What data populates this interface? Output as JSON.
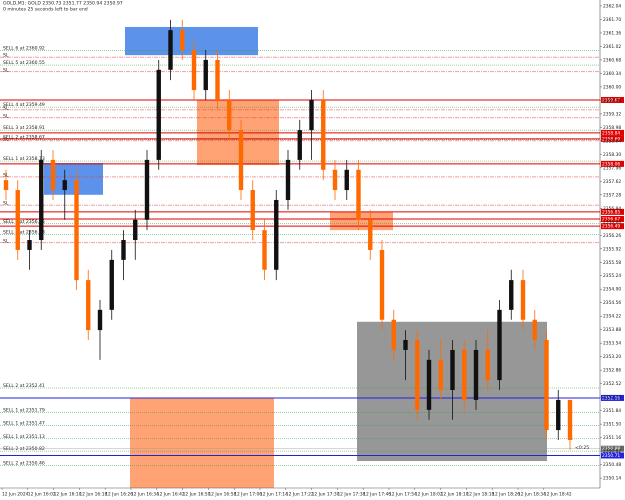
{
  "chart_data": {
    "type": "candlestick",
    "title": "GOLD,M1: GOLD 2350.73 2351.77 2350.94 2350.97",
    "subtitle": "0 minutes 25 seconds left to bar end",
    "ylim": [
      2349.89,
      2362.19
    ],
    "yticks": [
      2362.04,
      {
        "value": 2361.7,
        "label": "2361.70"
      },
      2361.36,
      2361.02,
      2360.68,
      2360.34,
      {
        "value": 2360,
        "label": "2360.00"
      },
      2359.66,
      2359.32,
      2358.98,
      2358.64,
      {
        "value": 2358.3,
        "label": "2358.30"
      },
      2357.96,
      2357.62,
      2357.28,
      2356.94,
      {
        "value": 2356.6,
        "label": "2356.60"
      },
      2356.26,
      2355.92,
      2355.58,
      2355.24,
      {
        "value": 2354.9,
        "label": "2354.90"
      },
      2354.56,
      2354.22,
      2353.88,
      2353.54,
      {
        "value": 2353.2,
        "label": "2353.20"
      },
      2352.86,
      2352.52,
      2352.18,
      2351.84,
      {
        "value": 2351.5,
        "label": "2351.50"
      },
      2351.16,
      2350.82,
      2350.48,
      2350.14
    ],
    "time_labels": [
      "12 Jun 2024",
      "12 Jun 16:02",
      "12 Jun 16:10",
      "12 Jun 16:18",
      "12 Jun 16:26",
      "12 Jun 16:34",
      "12 Jun 16:42",
      "12 Jun 16:50",
      "12 Jun 16:58",
      "12 Jun 17:06",
      "12 Jun 17:14",
      "12 Jun 17:22",
      "12 Jun 17:30",
      "12 Jun 17:38",
      "12 Jun 17:46",
      "12 Jun 17:54",
      "12 Jun 18:02",
      "12 Jun 18:10",
      "12 Jun 18:18",
      "12 Jun 18:26",
      "12 Jun 18:34",
      "12 Jun 18:42"
    ],
    "up_color": "#111111",
    "down_color": "#ff6a00",
    "open": [
      2357.65,
      2357.4,
      2355.89,
      2356.14,
      2358.16,
      2357.4,
      2357.65,
      2355.13,
      2353.87,
      2354.38,
      2355.64,
      2356.14,
      2356.65,
      2358.16,
      2360.43,
      2361.43,
      2360.93,
      2359.92,
      2360.68,
      2359.67,
      2358.91,
      2357.4,
      2356.39,
      2355.39,
      2357.15,
      2358.16,
      2358.91,
      2359.67,
      2357.91,
      2357.4,
      2357.91,
      2356.65,
      2355.89,
      2354.13,
      2353.37,
      2353.62,
      2351.86,
      2353.12,
      2352.36,
      2353.37,
      2352.11,
      2353.37,
      2352.61,
      2354.38,
      2355.13,
      2354.13,
      2353.62,
      2351.35,
      2352.11
    ],
    "high": [
      2357.91,
      2357.65,
      2356.39,
      2358.41,
      2358.41,
      2357.91,
      2357.91,
      2355.39,
      2354.63,
      2355.89,
      2356.39,
      2356.9,
      2358.41,
      2360.68,
      2361.69,
      2361.69,
      2361.18,
      2360.93,
      2360.93,
      2359.92,
      2359.17,
      2357.65,
      2356.65,
      2357.4,
      2358.41,
      2359.17,
      2359.92,
      2359.92,
      2358.16,
      2358.16,
      2358.16,
      2356.9,
      2356.14,
      2354.38,
      2353.87,
      2353.87,
      2353.37,
      2353.62,
      2353.62,
      2353.62,
      2353.62,
      2353.87,
      2354.63,
      2355.39,
      2355.39,
      2354.38,
      2353.87,
      2352.36,
      2352.11
    ],
    "low": [
      2357.15,
      2355.64,
      2355.39,
      2355.89,
      2357.15,
      2356.65,
      2354.88,
      2353.62,
      2353.12,
      2354.13,
      2355.13,
      2355.64,
      2356.39,
      2357.91,
      2360.17,
      2360.68,
      2359.67,
      2359.67,
      2359.42,
      2358.66,
      2357.15,
      2356.14,
      2355.13,
      2355.13,
      2356.9,
      2357.91,
      2358.16,
      2357.65,
      2357.15,
      2357.15,
      2356.39,
      2355.64,
      2353.87,
      2353.12,
      2352.61,
      2351.61,
      2351.61,
      2352.11,
      2351.61,
      2351.86,
      2351.86,
      2352.36,
      2352.36,
      2354.13,
      2353.87,
      2353.37,
      2351.1,
      2351.1,
      2350.85
    ],
    "close": [
      2357.4,
      2355.89,
      2356.14,
      2358.16,
      2357.4,
      2357.65,
      2355.13,
      2353.87,
      2354.38,
      2355.64,
      2356.14,
      2356.65,
      2358.16,
      2360.43,
      2361.43,
      2360.93,
      2359.92,
      2360.68,
      2359.67,
      2358.91,
      2357.4,
      2356.39,
      2355.39,
      2357.15,
      2358.16,
      2358.91,
      2359.67,
      2357.91,
      2357.4,
      2357.91,
      2356.65,
      2355.89,
      2354.13,
      2353.37,
      2353.62,
      2351.86,
      2353.12,
      2352.36,
      2353.37,
      2352.11,
      2353.37,
      2352.61,
      2354.38,
      2355.13,
      2354.13,
      2353.62,
      2351.35,
      2352.11,
      2351.1
    ],
    "zones": [
      {
        "color": "#4a86e8",
        "top": 2361.51,
        "bottom": 2360.8
      },
      {
        "color": "#4a86e8",
        "top": 2358.08,
        "bottom": 2357.28
      },
      {
        "color": "#ff9966",
        "top": 2359.67,
        "bottom": 2358.03
      },
      {
        "color": "#ff9966",
        "top": 2356.85,
        "bottom": 2356.39
      },
      {
        "color": "#ff9966",
        "top": 2352.16,
        "bottom": 2349.89
      },
      {
        "color": "#8c8c8c",
        "top": 2354.08,
        "bottom": 2350.57
      }
    ],
    "orders": [
      {
        "label": "SELL 6 at 2360.92",
        "price": 2360.92
      },
      {
        "label": "SELL 5 at 2360.55",
        "price": 2360.55
      },
      {
        "label": "SELL 4 at 2359.49",
        "price": 2359.49
      },
      {
        "label": "SELL 3 at 2358.91",
        "price": 2358.91
      },
      {
        "label": "SELL 2 at 2358.67",
        "price": 2358.67
      },
      {
        "label": "SELL 1 at 2358.13",
        "price": 2358.13
      },
      {
        "label": "SELL 1 at 2356.55",
        "price": 2356.55
      },
      {
        "label": "SELL 1 at 2356.28",
        "price": 2356.28
      },
      {
        "label": "SELL 2 at 2352.41",
        "price": 2352.41
      },
      {
        "label": "SELL 1 at 2351.79",
        "price": 2351.79
      },
      {
        "label": "SELL 1 at 2351.47",
        "price": 2351.47
      },
      {
        "label": "SELL 1 at 2351.13",
        "price": 2351.13
      },
      {
        "label": "SELL 2 at 2350.82",
        "price": 2350.82
      },
      {
        "label": "SELL 2 at 2350.46",
        "price": 2350.46
      }
    ],
    "sl_label": "SL",
    "sl_levels": [
      2360.75,
      2360.38,
      2359.42,
      2359.22,
      2358.64,
      2357.73,
      2357.02,
      2356.07
    ],
    "levels": [
      {
        "price": 2359.67,
        "color": "#e00000"
      },
      {
        "price": 2358.84,
        "color": "#e00000"
      },
      {
        "price": 2358.69,
        "color": "#e00000"
      },
      {
        "price": 2358.06,
        "color": "#e00000"
      },
      {
        "price": 2356.85,
        "color": "#e00000"
      },
      {
        "price": 2356.67,
        "color": "#e00000"
      },
      {
        "price": 2356.49,
        "color": "#e00000"
      },
      {
        "price": 2352.16,
        "color": "#2222dd"
      },
      {
        "price": 2350.71,
        "color": "#2222dd"
      }
    ],
    "bid": 2350.88,
    "countdown": "<0:25"
  }
}
